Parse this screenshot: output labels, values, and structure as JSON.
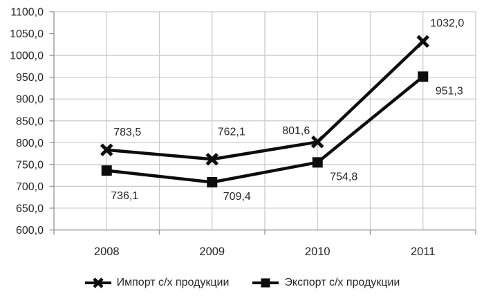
{
  "chart_data": {
    "type": "line",
    "categories": [
      "2008",
      "2009",
      "2010",
      "2011"
    ],
    "series": [
      {
        "key": "import",
        "name": "Импорт с/х продукции",
        "marker": "x",
        "values": [
          783.5,
          762.1,
          801.6,
          1032.0
        ],
        "value_labels": [
          "783,5",
          "762,1",
          "801,6",
          "1032,0"
        ],
        "label_offsets": [
          [
            30,
            -26
          ],
          [
            28,
            -40
          ],
          [
            -31,
            -17
          ],
          [
            35,
            -27
          ]
        ]
      },
      {
        "key": "export",
        "name": "Экспорт с/х продукции",
        "marker": "square",
        "values": [
          736.1,
          709.4,
          754.8,
          951.3
        ],
        "value_labels": [
          "736,1",
          "709,4",
          "754,8",
          "951,3"
        ],
        "label_offsets": [
          [
            26,
            36
          ],
          [
            36,
            20
          ],
          [
            38,
            20
          ],
          [
            38,
            20
          ]
        ]
      }
    ],
    "title": "",
    "xlabel": "",
    "ylabel": "",
    "ylim": [
      600,
      1100
    ],
    "ytick_step": 50,
    "ytick_labels": [
      "600,0",
      "650,0",
      "700,0",
      "750,0",
      "800,0",
      "850,0",
      "900,0",
      "950,0",
      "1000,0",
      "1050,0",
      "1100,0"
    ],
    "gridline_skip_values": [
      1050
    ],
    "grid": true,
    "legend_position": "bottom",
    "decimal_separator": ",",
    "colors": {
      "series": "#0d0d0d",
      "grid": "#c9c9c9",
      "axis": "#9a9a9a",
      "text": "#262626",
      "background": "#ffffff"
    }
  }
}
